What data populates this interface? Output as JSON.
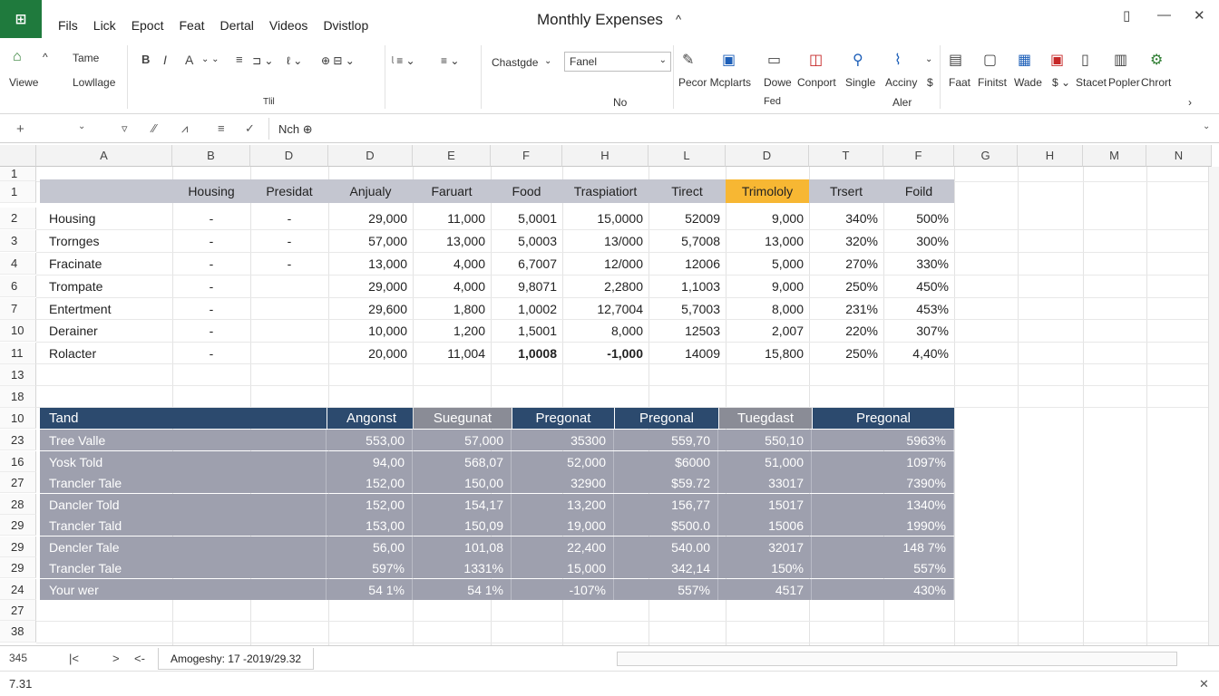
{
  "app": {
    "icon_text": "⊞"
  },
  "menu": [
    "Fils",
    "Lick",
    "Epoct",
    "Feat",
    "Dertal",
    "Videos",
    "Dvistlop"
  ],
  "title": "Monthly Expenses",
  "title_caret": "^",
  "window_controls": {
    "restore": "▯",
    "minimize": "—",
    "close": "✕"
  },
  "ribbon": {
    "view_label": "Viewe",
    "tame_label": "Tame",
    "lowfage_label": "Lowllage",
    "group_mid_label": "Tlil",
    "chastgde_label": "Chastgde",
    "font_value": "Fanel",
    "no_label": "No",
    "peror_label": "Pecor Mcplarts",
    "dowe_label": "Dowe",
    "conport_label": "Conport",
    "fed_label": "Fed",
    "single_label": "Single",
    "accinny_label": "Acciny",
    "dollar_label": "$",
    "aler_label": "Aler",
    "faat_label": "Faat",
    "finitst_label": "Finitst",
    "wade_label": "Wade",
    "stacet_label": "Stacet",
    "popler_label": "Popler",
    "chrort_label": "Chrort"
  },
  "formula_bar": {
    "content": "Nch ⊕"
  },
  "columns": [
    "A",
    "B",
    "D",
    "D",
    "E",
    "F",
    "H",
    "L",
    "D",
    "T",
    "F",
    "G",
    "H",
    "M",
    "N"
  ],
  "row_numbers": [
    "1",
    "1",
    "2",
    "3",
    "4",
    "6",
    "7",
    "10",
    "11",
    "13",
    "18",
    "10",
    "23",
    "16",
    "27",
    "28",
    "29",
    "29",
    "29",
    "24",
    "27",
    "38"
  ],
  "table1": {
    "headers": [
      "Housing",
      "Presidat",
      "Anjualy",
      "Faruart",
      "Food",
      "Traspiatiort",
      "Tirect",
      "Trimololy",
      "Trsert",
      "Foild"
    ],
    "rows": [
      [
        "Housing",
        "-",
        "-",
        "29,000",
        "11,000",
        "5,0001",
        "15,0000",
        "52009",
        "9,000",
        "340%",
        "500%"
      ],
      [
        "Trornges",
        "-",
        "-",
        "57,000",
        "13,000",
        "5,0003",
        "13/000",
        "5,7008",
        "13,000",
        "320%",
        "300%"
      ],
      [
        "Fracinate",
        "-",
        "-",
        "13,000",
        "4,000",
        "6,7007",
        "12/000",
        "12006",
        "5,000",
        "270%",
        "330%"
      ],
      [
        "Trompate",
        "-",
        "",
        "29,000",
        "4,000",
        "9,8071",
        "2,2800",
        "1,1003",
        "9,000",
        "250%",
        "450%"
      ],
      [
        "Entertment",
        "-",
        "",
        "29,600",
        "1,800",
        "1,0002",
        "12,7004",
        "5,7003",
        "8,000",
        "231%",
        "453%"
      ],
      [
        "Derainer",
        "-",
        "",
        "10,000",
        "1,200",
        "1,5001",
        "8,000",
        "12503",
        "2,007",
        "220%",
        "307%"
      ],
      [
        "Rolacter",
        "-",
        "",
        "20,000",
        "11,004",
        "1,0008",
        "-1,000",
        "14009",
        "15,800",
        "250%",
        "4,40%"
      ]
    ]
  },
  "table2": {
    "headers": [
      "Tand",
      "Angonst",
      "Suegunat",
      "Pregonat",
      "Pregonal",
      "Tuegdast",
      "Pregonal"
    ],
    "header_colors": [
      "#2c4a6e",
      "#2c4a6e",
      "#8a8c96",
      "#2c4a6e",
      "#2c4a6e",
      "#8a8c96",
      "#2c4a6e"
    ],
    "rows": [
      [
        "Tree Valle",
        "553,00",
        "57,000",
        "35300",
        "559,70",
        "550,10",
        "5963%"
      ],
      [
        "Yosk Told",
        "94,00",
        "568,07",
        "52,000",
        "$6000",
        "51,000",
        "1097%"
      ],
      [
        "Trancler Tale",
        "152,00",
        "150,00",
        "32900",
        "$59.72",
        "33017",
        "7390%"
      ],
      [
        "Dancler Told",
        "152,00",
        "154,17",
        "13,200",
        "156,77",
        "15017",
        "1340%"
      ],
      [
        "Trancler Tald",
        "153,00",
        "150,09",
        "19,000",
        "$500.0",
        "15006",
        "1990%"
      ],
      [
        "Dencler Tale",
        "56,00",
        "101,08",
        "22,400",
        "540.00",
        "32017",
        "148 7%"
      ],
      [
        "Trancler Tale",
        "597%",
        "1331%",
        "15,000",
        "342,14",
        "150%",
        "557%"
      ],
      [
        "Your wer",
        "54 1%",
        "54 1%",
        "-107%",
        "557%",
        "4517",
        "430%"
      ]
    ]
  },
  "sheet_tabs": {
    "left_value": "345",
    "first": "|<",
    "next": ">",
    "back": "<-",
    "active_tab": "Amogeshy: 17 -2019/29.32"
  },
  "status": {
    "left": "7.31",
    "close": "✕"
  },
  "colors": {
    "table1_header": "#c4c6d0",
    "highlight": "#f7b733",
    "table2_row": "#9ea0ae",
    "dark_header": "#2c4a6e",
    "app_green": "#1f7a3d"
  }
}
